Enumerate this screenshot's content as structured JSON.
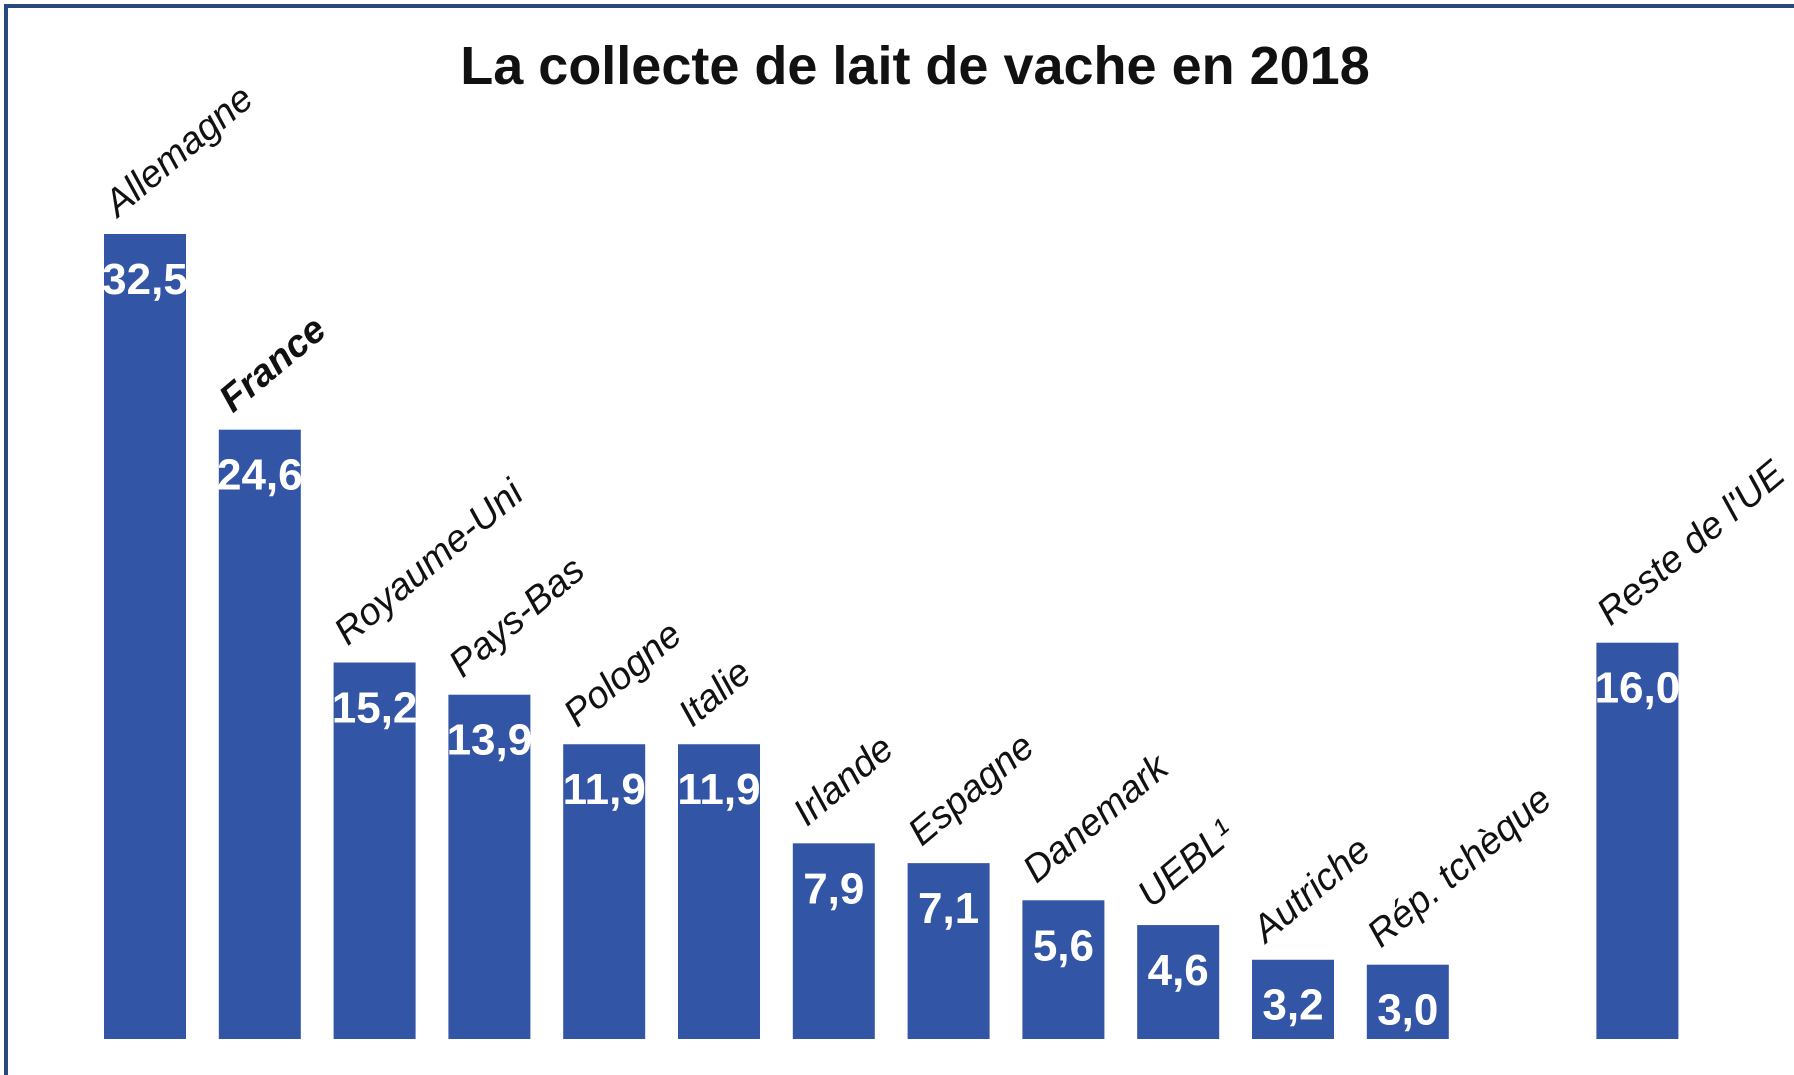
{
  "chart_data": {
    "type": "bar",
    "title": "La collecte de lait de vache en 2018",
    "categories": [
      "Allemagne",
      "France",
      "Royaume-Uni",
      "Pays-Bas",
      "Pologne",
      "Italie",
      "Irlande",
      "Espagne",
      "Danemark",
      "UEBL¹",
      "Autriche",
      "Rép. tchèque",
      "Reste de l'UE"
    ],
    "values": [
      32.5,
      24.6,
      15.2,
      13.9,
      11.9,
      11.9,
      7.9,
      7.1,
      5.6,
      4.6,
      3.2,
      3.0,
      16.0
    ],
    "value_labels": [
      "32,5",
      "24,6",
      "15,2",
      "13,9",
      "11,9",
      "11,9",
      "7,9",
      "7,1",
      "5,6",
      "4,6",
      "3,2",
      "3,0",
      "16,0"
    ],
    "color": "#3355a5",
    "highlight": 1
  }
}
